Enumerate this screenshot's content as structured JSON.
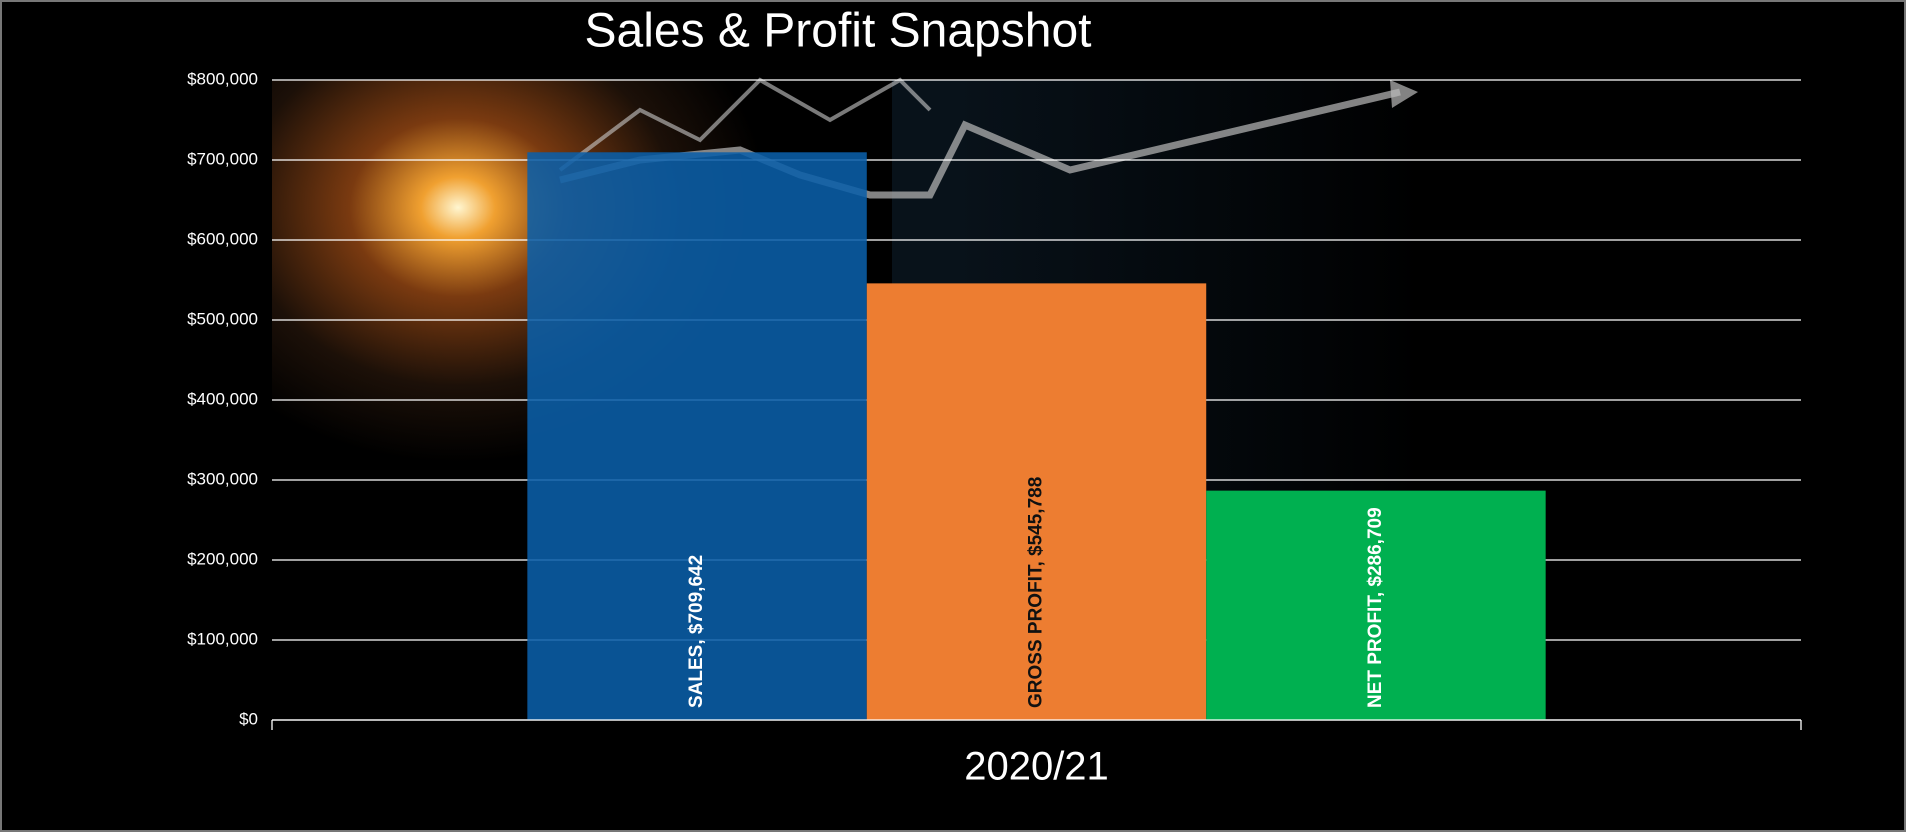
{
  "chart_data": {
    "type": "bar",
    "title": "Sales & Profit Snapshot",
    "categories": [
      "2020/21"
    ],
    "series": [
      {
        "name": "SALES",
        "color": "#0a5fa8",
        "label_color": "#ffffff",
        "values": [
          709642
        ],
        "value_labels": [
          "$709,642"
        ]
      },
      {
        "name": "GROSS PROFIT",
        "color": "#ed7d31",
        "label_color": "#111111",
        "values": [
          545788
        ],
        "value_labels": [
          "$545,788"
        ]
      },
      {
        "name": "NET PROFIT",
        "color": "#00b050",
        "label_color": "#ffffff",
        "values": [
          286709
        ],
        "value_labels": [
          "$286,709"
        ]
      }
    ],
    "ylim": [
      0,
      800000
    ],
    "yticks": [
      {
        "value": 0,
        "label": "$0"
      },
      {
        "value": 100000,
        "label": "$100,000"
      },
      {
        "value": 200000,
        "label": "$200,000"
      },
      {
        "value": 300000,
        "label": "$300,000"
      },
      {
        "value": 400000,
        "label": "$400,000"
      },
      {
        "value": 500000,
        "label": "$500,000"
      },
      {
        "value": 600000,
        "label": "$600,000"
      },
      {
        "value": 700000,
        "label": "$700,000"
      },
      {
        "value": 800000,
        "label": "$800,000"
      }
    ],
    "grid": true
  }
}
